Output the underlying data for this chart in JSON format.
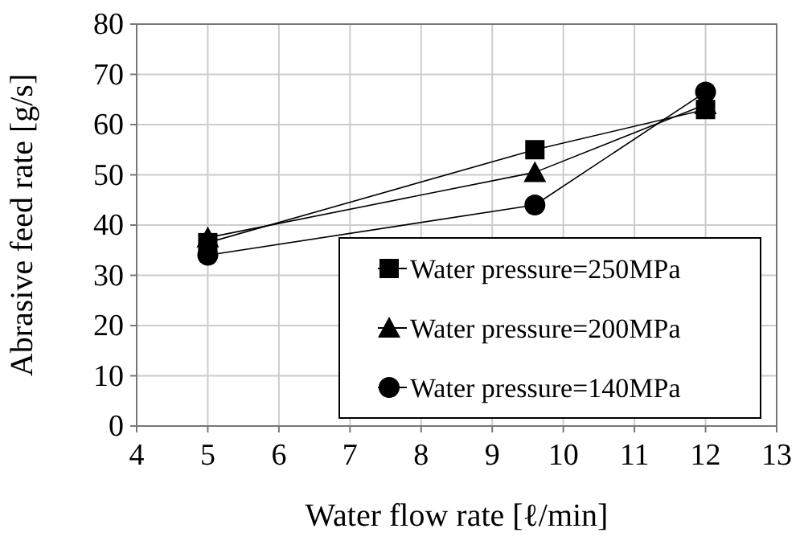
{
  "chart_data": {
    "type": "line",
    "xlabel": "Water flow rate [ℓ/min]",
    "ylabel": "Abrasive feed rate [g/s]",
    "xlim": [
      4,
      13
    ],
    "xticks": [
      4,
      5,
      6,
      7,
      8,
      9,
      10,
      11,
      12,
      13
    ],
    "ylim": [
      0,
      80
    ],
    "yticks": [
      0,
      10,
      20,
      30,
      40,
      50,
      60,
      70,
      80
    ],
    "grid": true,
    "legend": "bottom right",
    "x": [
      5,
      9.6,
      12
    ],
    "series": [
      {
        "name": "Water pressure=250MPa",
        "color": "#000000",
        "marker": "square",
        "values": [
          36.5,
          55,
          63
        ]
      },
      {
        "name": "Water pressure=200MPa",
        "color": "#000000",
        "marker": "triangle",
        "values": [
          37.5,
          50.5,
          64
        ]
      },
      {
        "name": "Water pressure=140MPa",
        "color": "#000000",
        "marker": "circle",
        "values": [
          34,
          44,
          66.5
        ]
      }
    ]
  }
}
